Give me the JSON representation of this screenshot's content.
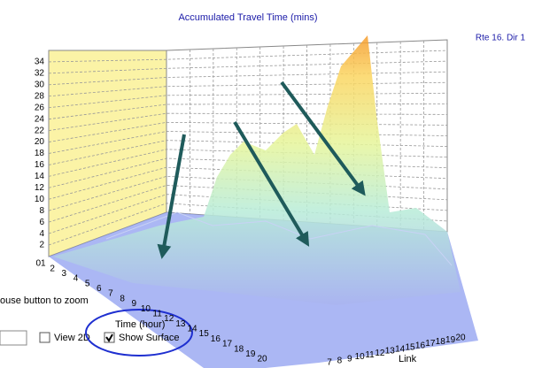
{
  "title": "Accumulated Travel Time (mins)",
  "route_label": "Rte 16. Dir 1",
  "z_axis": {
    "zlim": [
      0,
      36
    ],
    "ticks": [
      2,
      4,
      6,
      8,
      10,
      12,
      14,
      16,
      18,
      20,
      22,
      24,
      26,
      28,
      30,
      32,
      34
    ]
  },
  "time_axis": {
    "label": "Time (hour)",
    "ticks": [
      "01",
      2,
      3,
      4,
      5,
      6,
      7,
      8,
      9,
      10,
      11,
      12,
      13,
      14,
      15,
      16,
      17,
      18,
      19,
      20
    ]
  },
  "link_axis": {
    "label": "Link",
    "ticks": [
      7,
      8,
      9,
      10,
      11,
      12,
      13,
      14,
      15,
      16,
      17,
      18,
      19,
      20
    ]
  },
  "hint": "ouse button to zoom",
  "checkboxes": [
    {
      "label": "View 2D",
      "checked": false
    },
    {
      "label": "Show Surface",
      "checked": true
    }
  ]
}
